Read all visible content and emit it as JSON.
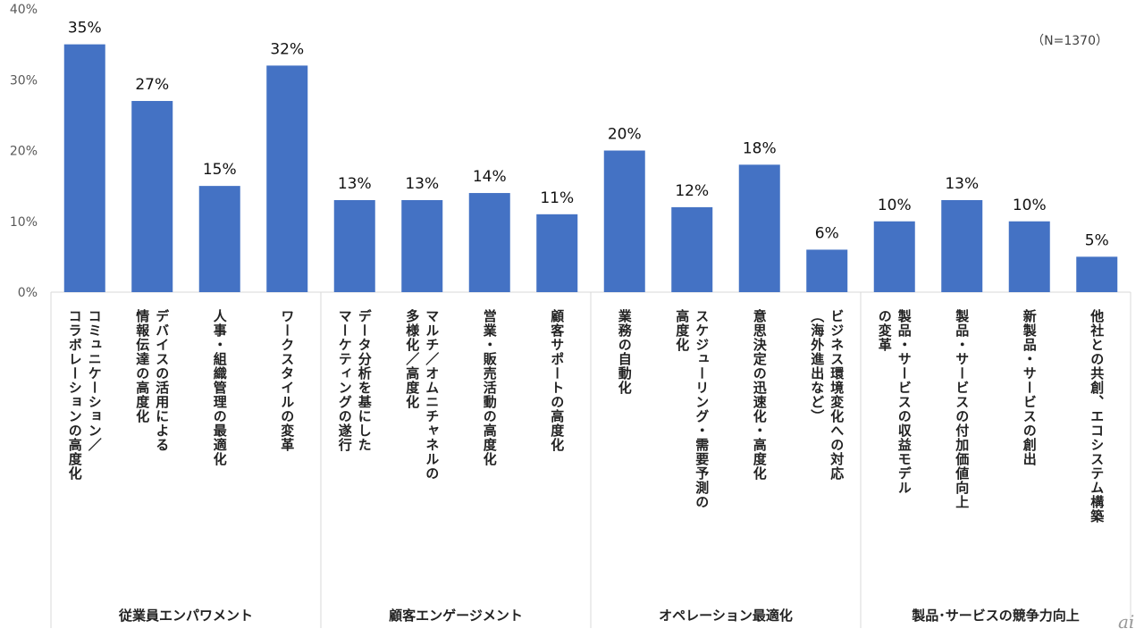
{
  "chart_data": {
    "type": "bar",
    "ylim": [
      0,
      40
    ],
    "yticks": [
      "0%",
      "10%",
      "20%",
      "30%",
      "40%"
    ],
    "note": "（N=1370）",
    "categories": [
      {
        "lines": [
          "コミュニケーション／",
          "コラボレーションの高度化"
        ],
        "value": 35,
        "label": "35%"
      },
      {
        "lines": [
          "デバイスの活用による",
          "情報伝達の高度化"
        ],
        "value": 27,
        "label": "27%"
      },
      {
        "lines": [
          "人事・組織管理の最適化"
        ],
        "value": 15,
        "label": "15%"
      },
      {
        "lines": [
          "ワークスタイルの変革"
        ],
        "value": 32,
        "label": "32%"
      },
      {
        "lines": [
          "データ分析を基にした",
          "マーケティングの遂行"
        ],
        "value": 13,
        "label": "13%"
      },
      {
        "lines": [
          "マルチ／オムニチャネルの",
          "多様化／高度化"
        ],
        "value": 13,
        "label": "13%"
      },
      {
        "lines": [
          "営業・販売活動の高度化"
        ],
        "value": 14,
        "label": "14%"
      },
      {
        "lines": [
          "顧客サポートの高度化"
        ],
        "value": 11,
        "label": "11%"
      },
      {
        "lines": [
          "業務の自動化"
        ],
        "value": 20,
        "label": "20%"
      },
      {
        "lines": [
          "スケジューリング・需要予測の",
          "高度化"
        ],
        "value": 12,
        "label": "12%"
      },
      {
        "lines": [
          "意思決定の迅速化・高度化"
        ],
        "value": 18,
        "label": "18%"
      },
      {
        "lines": [
          "ビジネス環境変化への対応",
          "（海外進出など）"
        ],
        "value": 6,
        "label": "6%"
      },
      {
        "lines": [
          "製品・サービスの収益モデル",
          "の変革"
        ],
        "value": 10,
        "label": "10%"
      },
      {
        "lines": [
          "製品・サービスの付加価値向上"
        ],
        "value": 13,
        "label": "13%"
      },
      {
        "lines": [
          "新製品・サービスの創出"
        ],
        "value": 10,
        "label": "10%"
      },
      {
        "lines": [
          "他社との共創、エコシステム構築"
        ],
        "value": 5,
        "label": "5%"
      }
    ],
    "groups": [
      {
        "label": "従業員エンパワメント",
        "count": 4
      },
      {
        "label": "顧客エンゲージメント",
        "count": 4
      },
      {
        "label": "オペレーション最適化",
        "count": 4
      },
      {
        "label": "製品･サービスの競争力向上",
        "count": 4
      }
    ],
    "bar_color": "#4472C4"
  },
  "logo": "ai"
}
